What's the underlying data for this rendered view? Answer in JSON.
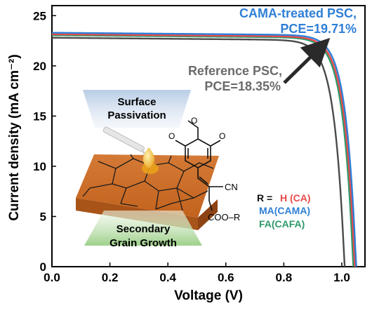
{
  "chart_data": {
    "type": "line",
    "xlabel": "Voltage (V)",
    "ylabel": "Current density (mA cm⁻²)",
    "xlim": [
      0.0,
      1.08
    ],
    "ylim": [
      0,
      26
    ],
    "xticks": [
      "0.0",
      "0.2",
      "0.4",
      "0.6",
      "0.8",
      "1.0"
    ],
    "xtick_values": [
      0.0,
      0.2,
      0.4,
      0.6,
      0.8,
      1.0
    ],
    "yticks": [
      "0",
      "5",
      "10",
      "15",
      "20",
      "25"
    ],
    "ytick_values": [
      0,
      5,
      10,
      15,
      20,
      25
    ],
    "grid": false,
    "series": [
      {
        "color": "#4a4a4a",
        "jsc": 22.8,
        "voc": 1.01
      },
      {
        "color": "#2e9a6a",
        "jsc": 23.05,
        "voc": 1.04
      },
      {
        "color": "#e84a4a",
        "jsc": 23.15,
        "voc": 1.045
      },
      {
        "color": "#2f7fd6",
        "jsc": 23.3,
        "voc": 1.05
      }
    ],
    "annotations": {
      "cama_line1": "CAMA-treated PSC,",
      "cama_line2": "PCE=19.71%",
      "ref_line1": "Reference PSC,",
      "ref_line2": "PCE=18.35%",
      "cama_color": "#2f7fd6",
      "ref_color": "#6b6b6b"
    }
  },
  "inset": {
    "surface_line1": "Surface",
    "surface_line2": "Passivation",
    "secondary_line1": "Secondary",
    "secondary_line2": "Grain Growth",
    "label_color": "#c0392b",
    "r_eq": "R = ",
    "r_h": "H (CA)",
    "r_ma": "MA(CAMA)",
    "r_fa": "FA(CAFA)",
    "r_h_color": "#e84a4a",
    "r_ma_color": "#2f7fd6",
    "r_fa_color": "#2e9a6a",
    "cn": "CN",
    "ester": "COO–R",
    "o_atom": "O"
  }
}
